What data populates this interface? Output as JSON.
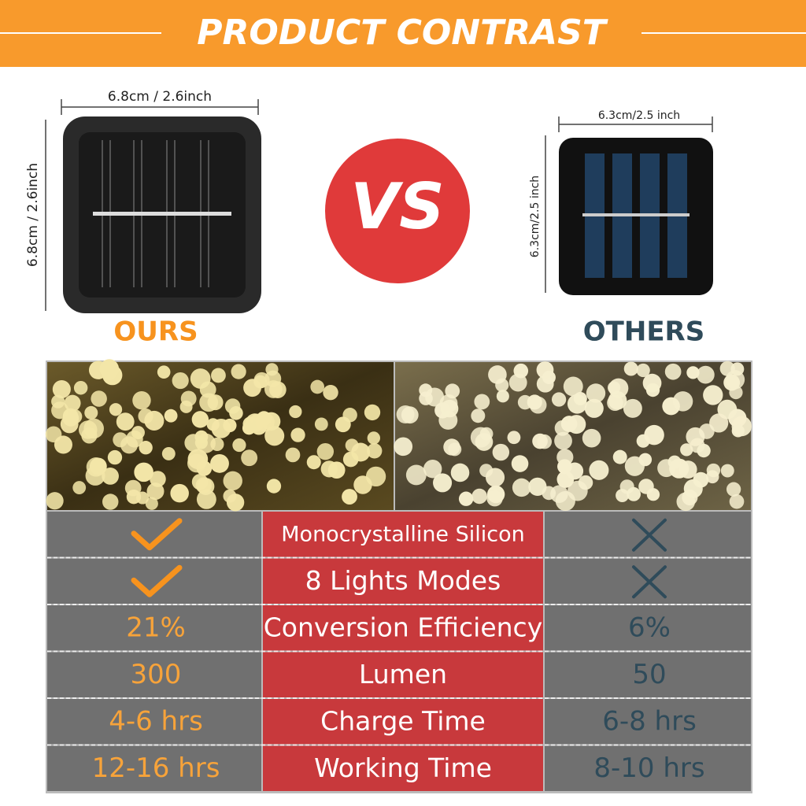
{
  "header": {
    "title": "PRODUCT CONTRAST"
  },
  "ours": {
    "width_label": "6.8cm / 2.6inch",
    "height_label": "6.8cm / 2.6inch",
    "label": "OURS"
  },
  "versus": "VS",
  "others": {
    "width_label": "6.3cm/2.5 inch",
    "height_label": "6.3cm/2.5 inch",
    "label": "OTHERS"
  },
  "table": {
    "rows": [
      {
        "feature": "Monocrystalline Silicon"
      },
      {
        "feature": "8 Lights Modes"
      },
      {
        "ours": "21%",
        "feature": "Conversion Efficiency",
        "others": "6%"
      },
      {
        "ours": "300",
        "feature": "Lumen",
        "others": "50"
      },
      {
        "ours": "4-6 hrs",
        "feature": "Charge Time",
        "others": "6-8 hrs"
      },
      {
        "ours": "12-16 hrs",
        "feature": "Working Time",
        "others": "8-10 hrs"
      }
    ]
  }
}
